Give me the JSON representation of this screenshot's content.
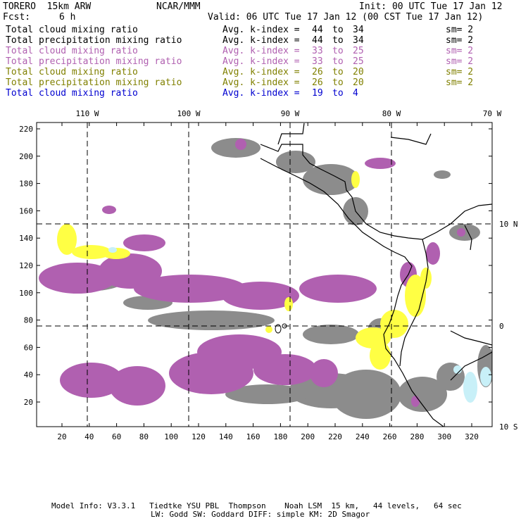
{
  "header": {
    "model": "TORERO  15km ARW",
    "center": "NCAR/MMM",
    "init": "Init: 00 UTC Tue 17 Jan 12",
    "fcst_label": "Fcst:",
    "fcst_value": "6 h",
    "valid": "Valid: 06 UTC Tue 17 Jan 12 (00 CST Tue 17 Jan 12)"
  },
  "legend": [
    {
      "field": "Total cloud mixing ratio",
      "kindex": "Avg. k-index =",
      "range_lo": "44",
      "range_to": "to",
      "range_hi": "34",
      "sm": "sm= 2",
      "color": "#000000"
    },
    {
      "field": "Total precipitation mixing ratio",
      "kindex": "Avg. k-index =",
      "range_lo": "44",
      "range_to": "to",
      "range_hi": "34",
      "sm": "sm= 2",
      "color": "#000000"
    },
    {
      "field": "Total cloud mixing ratio",
      "kindex": "Avg. k-index =",
      "range_lo": "33",
      "range_to": "to",
      "range_hi": "25",
      "sm": "sm= 2",
      "color": "#b060b0"
    },
    {
      "field": "Total precipitation mixing ratio",
      "kindex": "Avg. k-index =",
      "range_lo": "33",
      "range_to": "to",
      "range_hi": "25",
      "sm": "sm= 2",
      "color": "#b060b0"
    },
    {
      "field": "Total cloud mixing ratio",
      "kindex": "Avg. k-index =",
      "range_lo": "26",
      "range_to": "to",
      "range_hi": "20",
      "sm": "sm= 2",
      "color": "#808000"
    },
    {
      "field": "Total precipitation mixing ratio",
      "kindex": "Avg. k-index =",
      "range_lo": "26",
      "range_to": "to",
      "range_hi": "20",
      "sm": "sm= 2",
      "color": "#808000"
    },
    {
      "field": "Total cloud mixing ratio",
      "kindex": "Avg. k-index =",
      "range_lo": "19",
      "range_to": "to",
      "range_hi": "4",
      "sm": "",
      "color": "#0000d0"
    }
  ],
  "map": {
    "top_lon_labels": [
      "110 W",
      "100 W",
      "90 W",
      "80 W",
      "70 W"
    ],
    "right_lat_labels": [
      "10 N",
      "0",
      "10 S"
    ],
    "y_tick_labels": [
      "20",
      "40",
      "60",
      "80",
      "100",
      "120",
      "140",
      "160",
      "180",
      "200",
      "220"
    ],
    "x_tick_labels": [
      "20",
      "40",
      "60",
      "80",
      "100",
      "120",
      "140",
      "160",
      "180",
      "200",
      "220",
      "240",
      "260",
      "280",
      "300",
      "320"
    ],
    "colors": {
      "gray": "#8c8c8c",
      "purple": "#b060b0",
      "yellow": "#ffff44",
      "lightblue": "#c8f0f8",
      "coast": "#000000"
    }
  },
  "footer": {
    "line1": "Model Info: V3.3.1   Tiedtke YSU PBL  Thompson    Noah LSM  15 km,   44 levels,   64 sec",
    "line2": "LW: Godd SW: Goddard DIFF: simple KM: 2D Smagor"
  }
}
